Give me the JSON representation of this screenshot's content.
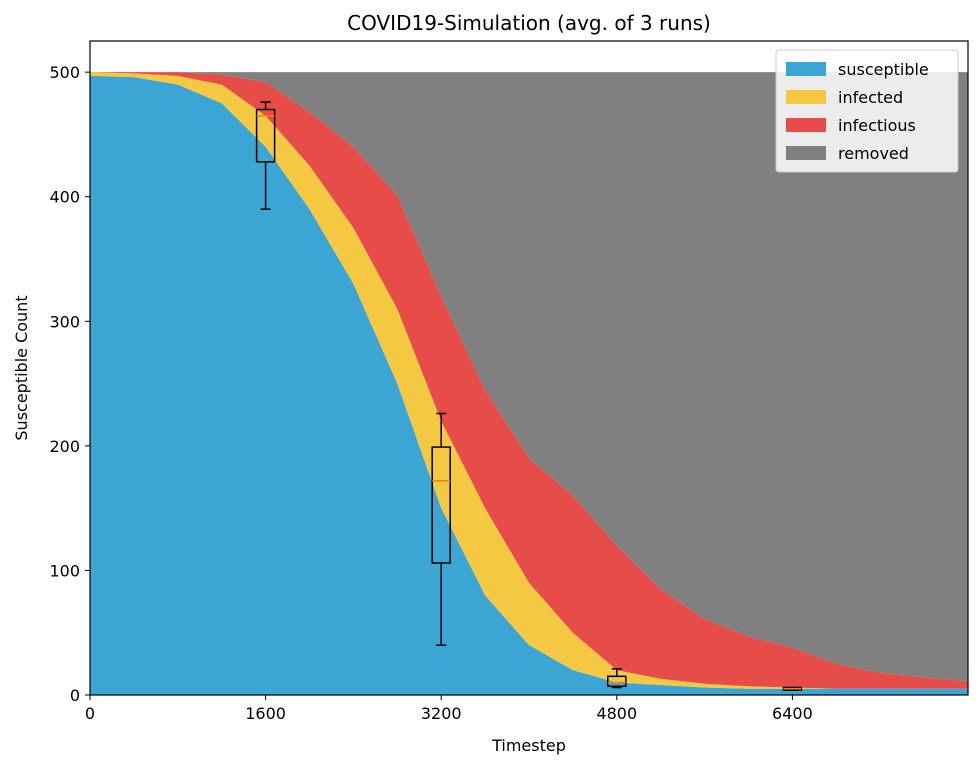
{
  "chart_data": {
    "type": "area",
    "title": "COVID19-Simulation (avg. of 3 runs)",
    "xlabel": "Timestep",
    "ylabel": "Susceptible Count",
    "xlim": [
      0,
      8000
    ],
    "ylim": [
      0,
      525
    ],
    "xticks": [
      0,
      1600,
      3200,
      4800,
      6400
    ],
    "yticks": [
      0,
      100,
      200,
      300,
      400,
      500
    ],
    "grid": false,
    "legend_position": "top-right",
    "stacked": true,
    "x": [
      0,
      400,
      800,
      1200,
      1600,
      2000,
      2400,
      2800,
      3200,
      3600,
      4000,
      4400,
      4800,
      5200,
      5600,
      6000,
      6400,
      6800,
      7200,
      7600,
      8000
    ],
    "series": [
      {
        "name": "susceptible",
        "color": "#3ba5d4",
        "values": [
          497,
          496,
          490,
          475,
          440,
          390,
          330,
          250,
          150,
          80,
          40,
          20,
          10,
          8,
          6,
          5,
          5,
          5,
          5,
          5,
          5
        ]
      },
      {
        "name": "infected",
        "color": "#f5c842",
        "values": [
          3,
          3,
          7,
          15,
          25,
          35,
          45,
          60,
          70,
          70,
          50,
          30,
          10,
          5,
          3,
          2,
          1,
          0,
          0,
          0,
          0
        ]
      },
      {
        "name": "infectious",
        "color": "#e64c48",
        "values": [
          0,
          1,
          3,
          8,
          27,
          43,
          65,
          91,
          100,
          95,
          100,
          110,
          100,
          72,
          52,
          40,
          32,
          20,
          13,
          9,
          6
        ]
      },
      {
        "name": "removed",
        "color": "#808080",
        "values": [
          0,
          0,
          0,
          2,
          8,
          32,
          60,
          99,
          180,
          255,
          310,
          340,
          380,
          415,
          439,
          453,
          462,
          475,
          482,
          486,
          489
        ]
      }
    ],
    "boxplots": [
      {
        "x": 1600,
        "whisker_low": 390,
        "q1": 428,
        "median": 465,
        "q3": 470,
        "whisker_high": 476
      },
      {
        "x": 3200,
        "whisker_low": 40,
        "q1": 106,
        "median": 172,
        "q3": 199,
        "whisker_high": 226
      },
      {
        "x": 4800,
        "whisker_low": 6,
        "q1": 7,
        "median": 10,
        "q3": 15,
        "whisker_high": 21
      },
      {
        "x": 6400,
        "whisker_low": 4,
        "q1": 4,
        "median": 5,
        "q3": 6,
        "whisker_high": 6
      }
    ],
    "box_color": "#000000",
    "median_color": "#ff7f0e"
  }
}
